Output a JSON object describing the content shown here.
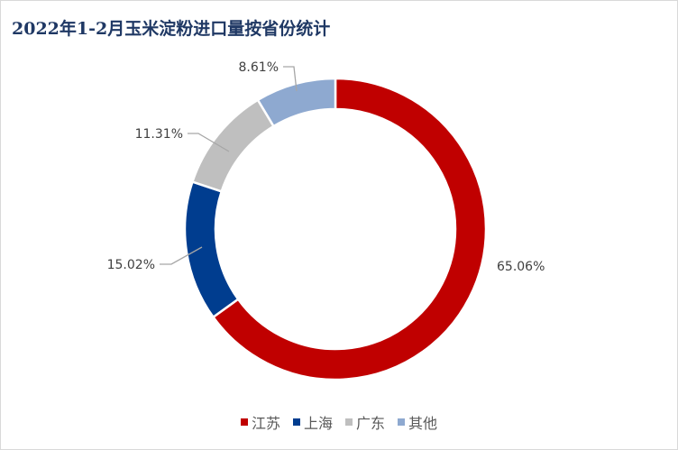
{
  "title": "2022年1-2月玉米淀粉进口量按省份统计",
  "chart_data": {
    "type": "pie",
    "title": "2022年1-2月玉米淀粉进口量按省份统计",
    "donut": true,
    "legend_position": "bottom",
    "slices": [
      {
        "name": "江苏",
        "value": 65.06,
        "label": "65.06%",
        "color": "#c00000"
      },
      {
        "name": "上海",
        "value": 15.02,
        "label": "15.02%",
        "color": "#003d8f"
      },
      {
        "name": "广东",
        "value": 11.31,
        "label": "11.31%",
        "color": "#bfbfbf"
      },
      {
        "name": "其他",
        "value": 8.61,
        "label": "8.61%",
        "color": "#8ea9d0"
      }
    ]
  }
}
